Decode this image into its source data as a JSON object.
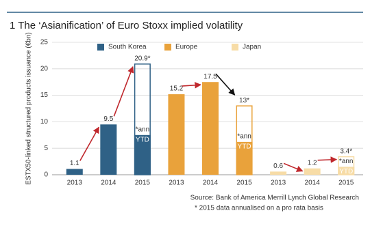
{
  "chart_data": {
    "type": "bar",
    "title": "1 The ‘Asianification’ of Euro Stoxx implied volatility",
    "y_label": "ESTX50-linked structured products issuance (€bn)",
    "categories": [
      "2013",
      "2014",
      "2015",
      "2013",
      "2014",
      "2015",
      "2013",
      "2014",
      "2015"
    ],
    "series": [
      {
        "name": "South Korea",
        "color": "#2f6186",
        "values": [
          1.1,
          9.5,
          20.9,
          null,
          null,
          null,
          null,
          null,
          null
        ],
        "value_labels": [
          "1.1",
          "9.5",
          "20.9*",
          null,
          null,
          null,
          null,
          null,
          null
        ],
        "ytd": [
          null,
          null,
          7.5,
          null,
          null,
          null,
          null,
          null,
          null
        ]
      },
      {
        "name": "Europe",
        "color": "#e9a23b",
        "values": [
          null,
          null,
          null,
          15.2,
          17.5,
          13,
          null,
          null,
          null
        ],
        "value_labels": [
          null,
          null,
          null,
          "15.2",
          "17.5",
          "13*",
          null,
          null,
          null
        ],
        "ytd": [
          null,
          null,
          null,
          null,
          null,
          6.2,
          null,
          null,
          null
        ]
      },
      {
        "name": "Japan",
        "color": "#f7dca6",
        "values": [
          null,
          null,
          null,
          null,
          null,
          null,
          0.6,
          1.2,
          3.4
        ],
        "value_labels": [
          null,
          null,
          null,
          null,
          null,
          null,
          "0.6",
          "1.2",
          "3.4*"
        ],
        "ytd": [
          null,
          null,
          null,
          null,
          null,
          null,
          null,
          null,
          1.5
        ]
      }
    ],
    "ann_label": "*ann",
    "ytd_label": "YTD",
    "ylim": [
      0,
      25
    ],
    "yticks": [
      0,
      5,
      10,
      15,
      20,
      25
    ],
    "grid": true,
    "legend": "top",
    "source": "Source: Bank of America Merrill Lynch Global Research",
    "note": "* 2015 data annualised on a pro rata basis"
  }
}
